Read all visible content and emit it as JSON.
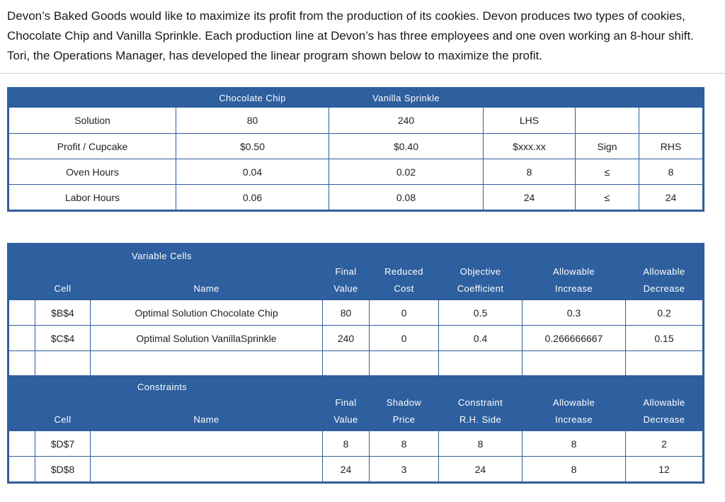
{
  "intro": "Devon’s Baked Goods would like to maximize its profit from the production of its cookies.  Devon produces two types of cookies, Chocolate Chip and Vanilla Sprinkle.  Each production line at Devon’s has three employees and one oven working an 8-hour shift.  Tori, the Operations Manager, has developed the linear program shown below to maximize the profit.",
  "lp_table": {
    "headers": [
      "",
      "Chocolate Chip",
      "Vanilla Sprinkle",
      "",
      "",
      ""
    ],
    "rows": [
      [
        "Solution",
        "80",
        "240",
        "LHS",
        "",
        ""
      ],
      [
        "Profit / Cupcake",
        "$0.50",
        "$0.40",
        "$xxx.xx",
        "Sign",
        "RHS"
      ],
      [
        "Oven Hours",
        "0.04",
        "0.02",
        "8",
        "≤",
        "8"
      ],
      [
        "Labor Hours",
        "0.06",
        "0.08",
        "24",
        "≤",
        "24"
      ]
    ]
  },
  "sensitivity": {
    "variable_section": "Variable Cells",
    "variable_headers": {
      "cell": "Cell",
      "name": "Name",
      "col3": [
        "Final",
        "Value"
      ],
      "col4": [
        "Reduced",
        "Cost"
      ],
      "col5": [
        "Objective",
        "Coefficient"
      ],
      "col6": [
        "Allowable",
        "Increase"
      ],
      "col7": [
        "Allowable",
        "Decrease"
      ]
    },
    "variable_rows": [
      [
        "$B$4",
        "Optimal Solution Chocolate Chip",
        "80",
        "0",
        "0.5",
        "0.3",
        "0.2"
      ],
      [
        "$C$4",
        "Optimal Solution VanillaSprinkle",
        "240",
        "0",
        "0.4",
        "0.266666667",
        "0.15"
      ]
    ],
    "constraint_section": "Constraints",
    "constraint_headers": {
      "cell": "Cell",
      "name": "Name",
      "col3": [
        "Final",
        "Value"
      ],
      "col4": [
        "Shadow",
        "Price"
      ],
      "col5": [
        "Constraint",
        "R.H. Side"
      ],
      "col6": [
        "Allowable",
        "Increase"
      ],
      "col7": [
        "Allowable",
        "Decrease"
      ]
    },
    "constraint_rows": [
      [
        "$D$7",
        "",
        "8",
        "8",
        "8",
        "8",
        "2"
      ],
      [
        "$D$8",
        "",
        "24",
        "3",
        "24",
        "8",
        "12"
      ]
    ]
  }
}
